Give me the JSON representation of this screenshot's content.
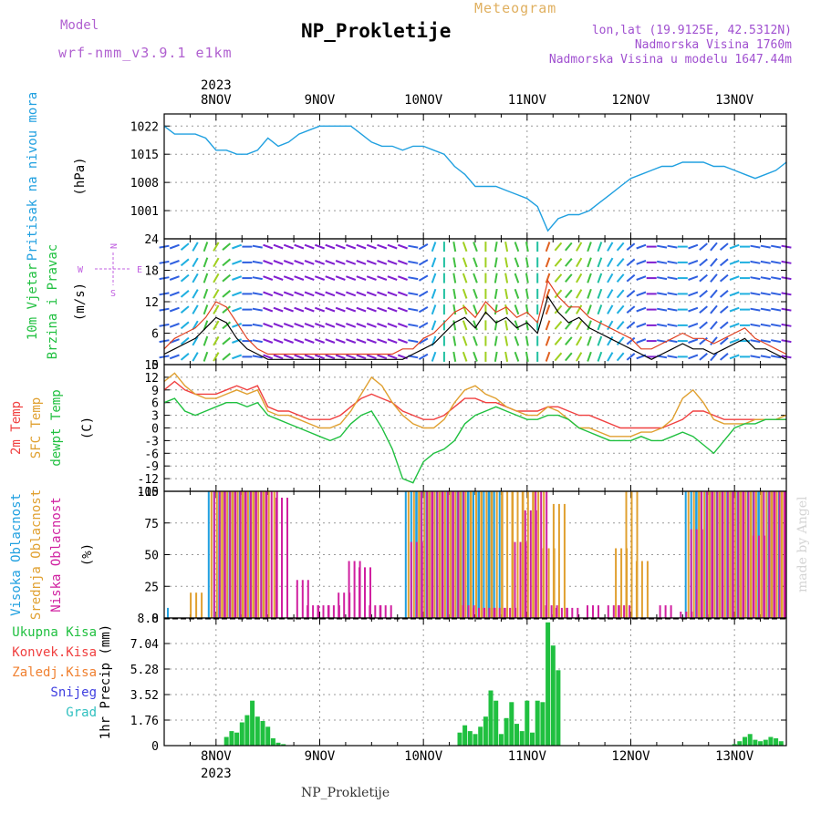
{
  "header": {
    "model_label": "Model",
    "model_name": "wrf-nmm_v3.9.1 e1km",
    "meteogram_label": "Meteogram",
    "station_title": "NP_Prokletije",
    "lonlat": "lon,lat (19.9125E, 42.5312N)",
    "elevation": "Nadmorska Visina 1760m",
    "model_elevation": "Nadmorska Visina u modelu 1647.44m",
    "watermark": "made by Angel",
    "footer_title": "NP_Prokletije",
    "colors": {
      "model": "#b060d0",
      "meteogram": "#e0b060",
      "info": "#a050d0"
    }
  },
  "chart_data": [
    {
      "type": "line",
      "panel": "pressure",
      "ylabel": [
        "Pritisak na nivou mora",
        "(hPa)"
      ],
      "ylabel_colors": [
        "#20a0e0",
        "#000000"
      ],
      "yticks": [
        1001,
        1008,
        1015,
        1022
      ],
      "ylim": [
        994,
        1025
      ],
      "x_dates": [
        "8NOV",
        "9NOV",
        "10NOV",
        "11NOV",
        "12NOV",
        "13NOV"
      ],
      "x_year": "2023",
      "x": [
        -0.5,
        -0.4,
        -0.3,
        -0.2,
        -0.1,
        0,
        0.1,
        0.2,
        0.3,
        0.4,
        0.5,
        0.6,
        0.7,
        0.8,
        0.9,
        1.0,
        1.1,
        1.2,
        1.3,
        1.4,
        1.5,
        1.6,
        1.7,
        1.8,
        1.9,
        2.0,
        2.1,
        2.2,
        2.3,
        2.4,
        2.5,
        2.6,
        2.7,
        2.8,
        2.9,
        3.0,
        3.1,
        3.2,
        3.3,
        3.4,
        3.5,
        3.6,
        3.7,
        3.8,
        3.9,
        4.0,
        4.1,
        4.2,
        4.3,
        4.4,
        4.5,
        4.6,
        4.7,
        4.8,
        4.9,
        5.0,
        5.1,
        5.2,
        5.3,
        5.4,
        5.5
      ],
      "series": [
        {
          "color": "#20a0e0",
          "values": [
            1022,
            1020,
            1020,
            1020,
            1019,
            1016,
            1016,
            1015,
            1015,
            1016,
            1019,
            1017,
            1018,
            1020,
            1021,
            1022,
            1022,
            1022,
            1022,
            1020,
            1018,
            1017,
            1017,
            1016,
            1017,
            1017,
            1016,
            1015,
            1012,
            1010,
            1007,
            1007,
            1007,
            1006,
            1005,
            1004,
            1002,
            996,
            999,
            1000,
            1000,
            1001,
            1003,
            1005,
            1007,
            1009,
            1010,
            1011,
            1012,
            1012,
            1013,
            1013,
            1013,
            1012,
            1012,
            1011,
            1010,
            1009,
            1010,
            1011,
            1013
          ]
        }
      ]
    },
    {
      "type": "barbs",
      "panel": "wind",
      "ylabel": [
        "10m Vjetar",
        "Brzina i Pravac",
        "(m/s)"
      ],
      "ylabel_colors": [
        "#20c040",
        "#20c040",
        "#000000"
      ],
      "yticks": [
        0,
        6,
        12,
        18,
        24
      ],
      "ylim": [
        0,
        24
      ],
      "compass": {
        "north": "N",
        "east": "E",
        "south": "S",
        "west": "W"
      },
      "x": [
        -0.5,
        -0.4,
        -0.3,
        -0.2,
        -0.1,
        0,
        0.1,
        0.2,
        0.3,
        0.4,
        0.5,
        0.6,
        0.7,
        0.8,
        0.9,
        1.0,
        1.1,
        1.2,
        1.3,
        1.4,
        1.5,
        1.6,
        1.7,
        1.8,
        1.9,
        2.0,
        2.1,
        2.2,
        2.3,
        2.4,
        2.5,
        2.6,
        2.7,
        2.8,
        2.9,
        3.0,
        3.1,
        3.2,
        3.3,
        3.4,
        3.5,
        3.6,
        3.7,
        3.8,
        3.9,
        4.0,
        4.1,
        4.2,
        4.3,
        4.4,
        4.5,
        4.6,
        4.7,
        4.8,
        4.9,
        5.0,
        5.1,
        5.2,
        5.3,
        5.4,
        5.5
      ],
      "series": [
        {
          "name": "speed",
          "color": "#000000",
          "values": [
            2,
            3,
            4,
            5,
            7,
            9,
            8,
            5,
            3,
            2,
            1,
            1,
            1,
            1,
            1,
            1,
            1,
            1,
            1,
            1,
            1,
            1,
            1,
            1,
            2,
            3,
            4,
            6,
            8,
            9,
            7,
            10,
            8,
            9,
            7,
            8,
            6,
            13,
            10,
            8,
            9,
            7,
            6,
            5,
            4,
            3,
            2,
            1,
            2,
            3,
            4,
            3,
            3,
            2,
            3,
            4,
            5,
            3,
            3,
            2,
            1
          ]
        },
        {
          "name": "gust",
          "color": "#e04020",
          "values": [
            3,
            5,
            6,
            7,
            9,
            12,
            11,
            8,
            5,
            3,
            2,
            2,
            2,
            2,
            2,
            2,
            2,
            2,
            2,
            2,
            2,
            2,
            2,
            3,
            3,
            5,
            6,
            8,
            10,
            11,
            9,
            12,
            10,
            11,
            9,
            10,
            8,
            16,
            13,
            11,
            11,
            9,
            8,
            7,
            6,
            5,
            3,
            3,
            4,
            5,
            6,
            5,
            5,
            4,
            5,
            6,
            7,
            5,
            4,
            3,
            2
          ]
        }
      ],
      "direction_deg": [
        260,
        250,
        230,
        210,
        200,
        210,
        230,
        250,
        270,
        280,
        290,
        290,
        290,
        290,
        290,
        290,
        290,
        290,
        290,
        290,
        290,
        290,
        290,
        290,
        280,
        240,
        200,
        180,
        170,
        160,
        160,
        180,
        190,
        170,
        160,
        170,
        180,
        200,
        220,
        220,
        210,
        200,
        200,
        210,
        220,
        230,
        250,
        270,
        280,
        280,
        270,
        250,
        230,
        220,
        230,
        250,
        270,
        280,
        280,
        280,
        280
      ]
    },
    {
      "type": "line",
      "panel": "temperature",
      "ylabel": [
        "2m Temp",
        "SFC Temp",
        "dewpt Temp",
        "(C)"
      ],
      "ylabel_colors": [
        "#f04040",
        "#e0a030",
        "#20c040",
        "#000000"
      ],
      "yticks": [
        -15,
        -12,
        -9,
        -6,
        -3,
        0,
        3,
        6,
        9,
        12,
        15
      ],
      "ylim": [
        -15,
        15
      ],
      "x": [
        -0.5,
        -0.4,
        -0.3,
        -0.2,
        -0.1,
        0,
        0.1,
        0.2,
        0.3,
        0.4,
        0.5,
        0.6,
        0.7,
        0.8,
        0.9,
        1.0,
        1.1,
        1.2,
        1.3,
        1.4,
        1.5,
        1.6,
        1.7,
        1.8,
        1.9,
        2.0,
        2.1,
        2.2,
        2.3,
        2.4,
        2.5,
        2.6,
        2.7,
        2.8,
        2.9,
        3.0,
        3.1,
        3.2,
        3.3,
        3.4,
        3.5,
        3.6,
        3.7,
        3.8,
        3.9,
        4.0,
        4.1,
        4.2,
        4.3,
        4.4,
        4.5,
        4.6,
        4.7,
        4.8,
        4.9,
        5.0,
        5.1,
        5.2,
        5.3,
        5.4,
        5.5
      ],
      "series": [
        {
          "name": "2m Temp",
          "color": "#f04040",
          "values": [
            9,
            11,
            9,
            8,
            8,
            8,
            9,
            10,
            9,
            10,
            5,
            4,
            4,
            3,
            2,
            2,
            2,
            3,
            5,
            7,
            8,
            7,
            6,
            4,
            3,
            2,
            2,
            3,
            5,
            7,
            7,
            6,
            6,
            5,
            4,
            4,
            4,
            5,
            5,
            4,
            3,
            3,
            2,
            1,
            0,
            0,
            0,
            0,
            0,
            1,
            2,
            4,
            4,
            3,
            2,
            2,
            2,
            2,
            2,
            2,
            2
          ]
        },
        {
          "name": "SFC Temp",
          "color": "#e0a030",
          "values": [
            11,
            13,
            10,
            8,
            7,
            7,
            8,
            9,
            8,
            9,
            4,
            3,
            3,
            2,
            1,
            0,
            0,
            1,
            4,
            8,
            12,
            10,
            6,
            3,
            1,
            0,
            0,
            2,
            6,
            9,
            10,
            8,
            7,
            5,
            4,
            3,
            3,
            5,
            4,
            2,
            0,
            0,
            -1,
            -2,
            -2,
            -2,
            -1,
            -1,
            0,
            2,
            7,
            9,
            6,
            2,
            1,
            1,
            1,
            2,
            2,
            2,
            3
          ]
        },
        {
          "name": "dewpt Temp",
          "color": "#20c040",
          "values": [
            6,
            7,
            4,
            3,
            4,
            5,
            6,
            6,
            5,
            6,
            3,
            2,
            1,
            0,
            -1,
            -2,
            -3,
            -2,
            1,
            3,
            4,
            0,
            -5,
            -12,
            -13,
            -8,
            -6,
            -5,
            -3,
            1,
            3,
            4,
            5,
            4,
            3,
            2,
            2,
            3,
            3,
            2,
            0,
            -1,
            -2,
            -3,
            -3,
            -3,
            -2,
            -3,
            -3,
            -2,
            -1,
            -2,
            -4,
            -6,
            -3,
            0,
            1,
            1,
            2,
            2,
            2
          ]
        }
      ]
    },
    {
      "type": "bar",
      "panel": "cloud",
      "ylabel": [
        "Visoka Oblacnost",
        "Srednja Oblacnost",
        "Niska Oblacnost",
        "(%)"
      ],
      "ylabel_colors": [
        "#20a0e0",
        "#e0a030",
        "#d020a0",
        "#000000"
      ],
      "yticks": [
        0,
        25,
        50,
        75,
        100
      ],
      "ylim": [
        0,
        100
      ],
      "x": [
        -0.5,
        -0.4,
        -0.3,
        -0.2,
        -0.1,
        0,
        0.1,
        0.2,
        0.3,
        0.4,
        0.5,
        0.6,
        0.7,
        0.8,
        0.9,
        1.0,
        1.1,
        1.2,
        1.3,
        1.4,
        1.5,
        1.6,
        1.7,
        1.8,
        1.9,
        2.0,
        2.1,
        2.2,
        2.3,
        2.4,
        2.5,
        2.6,
        2.7,
        2.8,
        2.9,
        3.0,
        3.1,
        3.2,
        3.3,
        3.4,
        3.5,
        3.6,
        3.7,
        3.8,
        3.9,
        4.0,
        4.1,
        4.2,
        4.3,
        4.4,
        4.5,
        4.6,
        4.7,
        4.8,
        4.9,
        5.0,
        5.1,
        5.2,
        5.3,
        5.4,
        5.5
      ],
      "series": [
        {
          "name": "Visoka Oblacnost",
          "color": "#20a0e0",
          "values": [
            8,
            0,
            0,
            0,
            0,
            100,
            100,
            100,
            100,
            100,
            0,
            0,
            0,
            0,
            0,
            0,
            0,
            0,
            0,
            0,
            0,
            0,
            0,
            0,
            100,
            100,
            100,
            100,
            100,
            100,
            100,
            100,
            100,
            0,
            0,
            0,
            0,
            0,
            0,
            0,
            0,
            0,
            0,
            0,
            0,
            0,
            0,
            0,
            0,
            0,
            0,
            100,
            100,
            100,
            100,
            100,
            100,
            100,
            100,
            100,
            100
          ]
        },
        {
          "name": "Srednja Oblacnost",
          "color": "#e0a030",
          "values": [
            0,
            0,
            0,
            20,
            0,
            100,
            100,
            100,
            100,
            100,
            100,
            0,
            0,
            0,
            0,
            0,
            0,
            0,
            0,
            0,
            0,
            0,
            0,
            0,
            100,
            100,
            100,
            100,
            100,
            100,
            100,
            100,
            100,
            100,
            100,
            100,
            100,
            55,
            90,
            0,
            0,
            0,
            0,
            0,
            55,
            100,
            45,
            0,
            0,
            0,
            0,
            100,
            100,
            100,
            100,
            100,
            100,
            100,
            100,
            100,
            100
          ]
        },
        {
          "name": "Niska Oblacnost",
          "color": "#d020a0",
          "values": [
            0,
            0,
            0,
            0,
            0,
            100,
            100,
            100,
            100,
            100,
            100,
            95,
            0,
            30,
            10,
            10,
            10,
            20,
            45,
            40,
            10,
            10,
            0,
            0,
            60,
            100,
            100,
            100,
            100,
            10,
            8,
            8,
            8,
            8,
            60,
            85,
            100,
            10,
            8,
            8,
            0,
            10,
            0,
            10,
            10,
            0,
            0,
            0,
            10,
            0,
            5,
            70,
            100,
            100,
            100,
            100,
            100,
            65,
            100,
            100,
            100
          ]
        }
      ]
    },
    {
      "type": "bar",
      "panel": "precip",
      "ylabel": [
        "1hr Precip (mm)"
      ],
      "ylabel_colors": [
        "#000000"
      ],
      "legend": [
        {
          "label": "Ukupna Kisa",
          "color": "#20c040"
        },
        {
          "label": "Konvek.Kisa",
          "color": "#f04040"
        },
        {
          "label": "Zaledj.Kisa",
          "color": "#f08030"
        },
        {
          "label": "Snijeg",
          "color": "#4040e0"
        },
        {
          "label": "Grad",
          "color": "#30c0c0"
        }
      ],
      "yticks": [
        0,
        1.76,
        3.52,
        5.28,
        7.04,
        8.8
      ],
      "ylim": [
        0,
        8.8
      ],
      "x": [
        0.1,
        0.15,
        0.2,
        0.25,
        0.3,
        0.35,
        0.4,
        0.45,
        0.5,
        0.55,
        0.6,
        0.65,
        2.35,
        2.4,
        2.45,
        2.5,
        2.55,
        2.6,
        2.65,
        2.7,
        2.75,
        2.8,
        2.85,
        2.9,
        2.95,
        3.0,
        3.05,
        3.1,
        3.15,
        3.2,
        3.25,
        3.3,
        5.0,
        5.05,
        5.1,
        5.15,
        5.2,
        5.25,
        5.3,
        5.35,
        5.4,
        5.45
      ],
      "series": [
        {
          "name": "Ukupna Kisa",
          "color": "#20c040",
          "values": [
            0.6,
            1.0,
            0.9,
            1.6,
            2.1,
            3.1,
            2.0,
            1.7,
            1.3,
            0.5,
            0.2,
            0.1,
            0.9,
            1.4,
            1.0,
            0.8,
            1.3,
            2.0,
            3.8,
            3.1,
            0.8,
            1.9,
            3.0,
            1.5,
            1.0,
            3.1,
            0.9,
            3.1,
            3.0,
            8.5,
            6.9,
            5.2,
            0.1,
            0.3,
            0.6,
            0.8,
            0.4,
            0.3,
            0.4,
            0.6,
            0.5,
            0.3
          ]
        }
      ]
    }
  ]
}
